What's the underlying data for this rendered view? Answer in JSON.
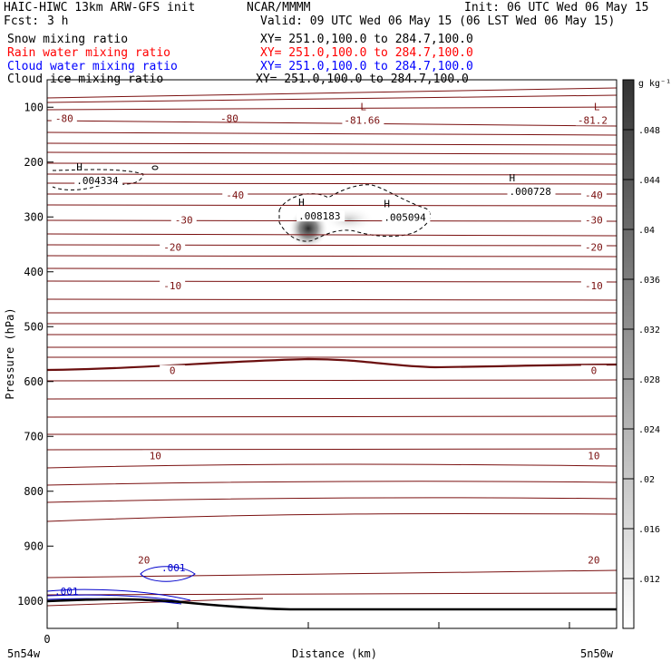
{
  "header": {
    "model": "HAIC-HIWC 13km ARW-GFS init",
    "org": "NCAR/MMMM",
    "init": "Init: 06 UTC Wed 06 May 15",
    "fcst_label": "Fcst:",
    "fcst_value": "3 h",
    "valid": "Valid: 09 UTC Wed 06 May 15 (06 LST Wed 06 May 15)"
  },
  "fields": [
    {
      "name": "Snow mixing ratio",
      "xy": "XY= 251.0,100.0 to 284.7,100.0",
      "color": "#000000"
    },
    {
      "name": "Rain water mixing ratio",
      "xy": "XY= 251.0,100.0 to 284.7,100.0",
      "color": "#ff0000"
    },
    {
      "name": "Cloud water mixing ratio",
      "xy": "XY= 251.0,100.0 to 284.7,100.0",
      "color": "#0000ff"
    },
    {
      "name": "Cloud ice mixing ratio",
      "xy": "XY= 251.0,100.0 to 284.7,100.0",
      "color": "#000000"
    }
  ],
  "chart_data": {
    "type": "contour cross-section",
    "xlabel": "Distance (km)",
    "ylabel": "Pressure (hPa)",
    "x_start_label": "0",
    "x_left_label": "5n54w",
    "x_right_label": "5n50w",
    "yticks": [
      100,
      200,
      300,
      400,
      500,
      600,
      700,
      800,
      900,
      1000
    ],
    "ylim": [
      50,
      1050
    ],
    "colorbar": {
      "unit": "g kg⁻¹",
      "ticks": [
        ".012",
        ".016",
        ".02",
        ".024",
        ".028",
        ".032",
        ".036",
        ".04",
        ".044",
        ".048"
      ],
      "range": [
        0.008,
        0.052
      ]
    },
    "temperature_contours": [
      {
        "label": "-80",
        "p": 120
      },
      {
        "label": "-40",
        "p": 260
      },
      {
        "label": "-30",
        "p": 305
      },
      {
        "label": "-20",
        "p": 355
      },
      {
        "label": "-10",
        "p": 425
      },
      {
        "label": "0",
        "p": 580
      },
      {
        "label": "10",
        "p": 735
      },
      {
        "label": "20",
        "p": 925
      }
    ],
    "extrema": [
      {
        "kind": "L",
        "value": "-81.66",
        "x": 0.55,
        "p": 115
      },
      {
        "kind": "L",
        "value": "-81.2",
        "x": 0.96,
        "p": 115
      },
      {
        "kind": "H",
        "value": ".004334",
        "x": 0.08,
        "p": 225
      },
      {
        "kind": "H",
        "value": ".008183",
        "x": 0.47,
        "p": 290
      },
      {
        "kind": "H",
        "value": ".005094",
        "x": 0.62,
        "p": 292
      },
      {
        "kind": "H",
        "value": ".000728",
        "x": 0.84,
        "p": 245
      }
    ],
    "cloud_water_labels": [
      ".001",
      ".001"
    ]
  }
}
